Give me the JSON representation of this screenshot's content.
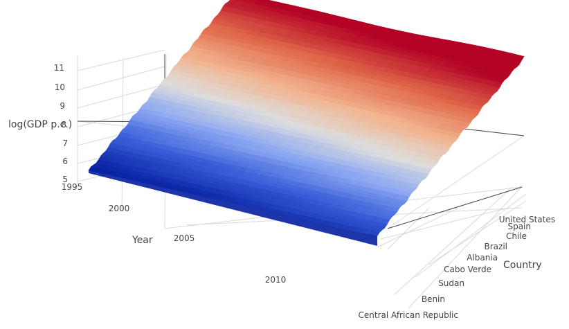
{
  "chart_data": {
    "type": "surface",
    "title": "",
    "colorscale": "Coolwarm",
    "colors": {
      "low": "#00189a",
      "mid": "#dddddd",
      "high": "#b40426"
    },
    "x_axis": {
      "title": "Year",
      "range": [
        1995,
        2016
      ],
      "ticks": [
        1995,
        2000,
        2005,
        2010
      ],
      "tick_labels": [
        "1995",
        "2000",
        "2005",
        "2010"
      ]
    },
    "y_axis": {
      "title": "Country",
      "tick_labels": [
        "Central African Republic",
        "Benin",
        "Sudan",
        "Cabo Verde",
        "Albania",
        "Brazil",
        "Chile",
        "Spain",
        "United States"
      ]
    },
    "z_axis": {
      "title": "log(GDP p.c.)",
      "range": [
        5,
        11.2
      ],
      "ticks": [
        5,
        6,
        7,
        8,
        9,
        10,
        11
      ],
      "tick_labels": [
        "5",
        "6",
        "7",
        "8",
        "9",
        "10",
        "11"
      ]
    },
    "surface_levels": {
      "country_rank_range": [
        0,
        1
      ],
      "log_gdp_low_end": 5.3,
      "log_gdp_high_end": 11.0,
      "year_trend_per_decade": 0.35
    }
  }
}
